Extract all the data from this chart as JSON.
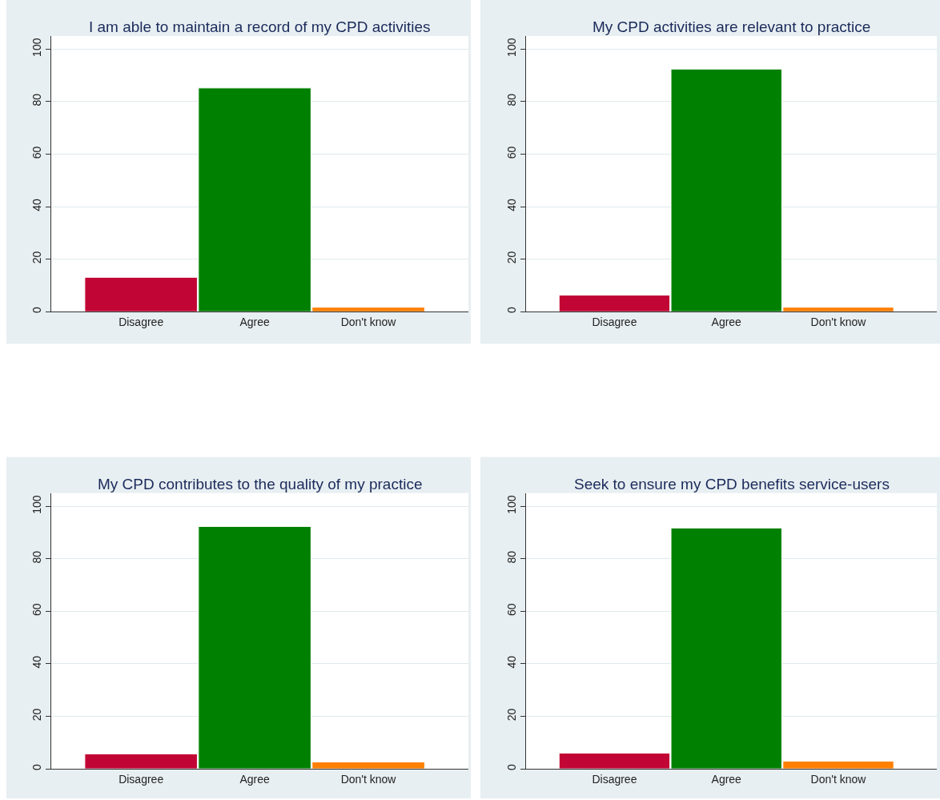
{
  "chart_data": [
    {
      "type": "bar",
      "title": "I am able to maintain a record of my CPD activities",
      "categories": [
        "Disagree",
        "Agree",
        "Don't know"
      ],
      "values": [
        13.1,
        85.2,
        1.7
      ],
      "colors": [
        "#c10534",
        "#008000",
        "#ff7f00"
      ],
      "ylim": [
        0,
        105
      ],
      "yticks": [
        0,
        20,
        40,
        60,
        80,
        100
      ],
      "grid": "y"
    },
    {
      "type": "bar",
      "title": "My CPD activities are relevant to practice",
      "categories": [
        "Disagree",
        "Agree",
        "Don't know"
      ],
      "values": [
        6.3,
        92.4,
        1.7
      ],
      "colors": [
        "#c10534",
        "#008000",
        "#ff7f00"
      ],
      "ylim": [
        0,
        105
      ],
      "yticks": [
        0,
        20,
        40,
        60,
        80,
        100
      ],
      "grid": "y"
    },
    {
      "type": "bar",
      "title": "My CPD contributes to the quality of my practice",
      "categories": [
        "Disagree",
        "Agree",
        "Don't know"
      ],
      "values": [
        5.7,
        92.3,
        2.6
      ],
      "colors": [
        "#c10534",
        "#008000",
        "#ff7f00"
      ],
      "ylim": [
        0,
        105
      ],
      "yticks": [
        0,
        20,
        40,
        60,
        80,
        100
      ],
      "grid": "y"
    },
    {
      "type": "bar",
      "title": "Seek to ensure my CPD benefits service-users",
      "categories": [
        "Disagree",
        "Agree",
        "Don't know"
      ],
      "values": [
        6.0,
        91.7,
        2.9
      ],
      "colors": [
        "#c10534",
        "#008000",
        "#ff7f00"
      ],
      "ylim": [
        0,
        105
      ],
      "yticks": [
        0,
        20,
        40,
        60,
        80,
        100
      ],
      "grid": "y"
    }
  ]
}
